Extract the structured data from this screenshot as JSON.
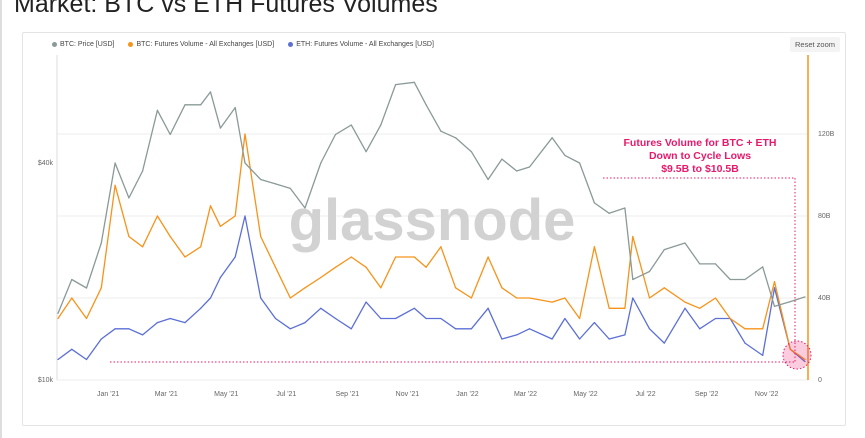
{
  "title": "Market: BTC vs ETH Futures Volumes",
  "reset_zoom": "Reset zoom",
  "watermark": "glassnode",
  "chart_data": {
    "type": "line",
    "title": "Market: BTC vs ETH Futures Volumes",
    "legend": [
      "BTC: Price [USD]",
      "BTC: Futures Volume - All Exchanges [USD]",
      "ETH: Futures Volume - All Exchanges [USD]"
    ],
    "legend_position": "top-left",
    "colors": {
      "btc_price": "#8a9a98",
      "btc_vol": "#f7931a",
      "eth_vol": "#5b6fd6",
      "annotation": "#e8196b"
    },
    "x_ticks": [
      "Jan '21",
      "Mar '21",
      "May '21",
      "Jul '21",
      "Sep '21",
      "Nov '21",
      "Jan '22",
      "Mar '22",
      "May '22",
      "Jul '22",
      "Sep '22",
      "Nov '22"
    ],
    "x_tick_dates": [
      "2021-01-01",
      "2021-03-01",
      "2021-05-01",
      "2021-07-01",
      "2021-09-01",
      "2021-11-01",
      "2022-01-01",
      "2022-03-01",
      "2022-05-01",
      "2022-07-01",
      "2022-09-01",
      "2022-11-01"
    ],
    "x_range": [
      "2020-11-10",
      "2022-12-13"
    ],
    "y_left": {
      "scale": "log",
      "range": [
        10000,
        80000
      ],
      "ticks": [
        {
          "v": 10000,
          "label": "$10k"
        },
        {
          "v": 40000,
          "label": "$40k"
        }
      ]
    },
    "y_right": {
      "scale": "linear",
      "range": [
        0,
        160
      ],
      "unit": "B",
      "ticks": [
        {
          "v": 0,
          "label": "0"
        },
        {
          "v": 40,
          "label": "40B"
        },
        {
          "v": 80,
          "label": "80B"
        },
        {
          "v": 120,
          "label": "120B"
        }
      ]
    },
    "x": [
      "2020-11-11",
      "2020-11-25",
      "2020-12-10",
      "2020-12-25",
      "2021-01-08",
      "2021-01-22",
      "2021-02-05",
      "2021-02-20",
      "2021-03-05",
      "2021-03-20",
      "2021-04-05",
      "2021-04-15",
      "2021-04-25",
      "2021-05-10",
      "2021-05-20",
      "2021-06-05",
      "2021-06-20",
      "2021-07-05",
      "2021-07-20",
      "2021-08-05",
      "2021-08-20",
      "2021-09-05",
      "2021-09-20",
      "2021-10-05",
      "2021-10-20",
      "2021-11-08",
      "2021-11-20",
      "2021-12-05",
      "2021-12-20",
      "2022-01-05",
      "2022-01-22",
      "2022-02-05",
      "2022-02-20",
      "2022-03-05",
      "2022-03-28",
      "2022-04-10",
      "2022-04-25",
      "2022-05-10",
      "2022-05-25",
      "2022-06-10",
      "2022-06-18",
      "2022-07-05",
      "2022-07-20",
      "2022-08-10",
      "2022-08-25",
      "2022-09-10",
      "2022-09-25",
      "2022-10-10",
      "2022-10-28",
      "2022-11-09",
      "2022-11-25",
      "2022-12-10"
    ],
    "series": [
      {
        "name": "BTC: Price [USD]",
        "axis": "left",
        "values": [
          15300,
          19000,
          18000,
          24000,
          40000,
          32000,
          38000,
          56000,
          48000,
          58000,
          58000,
          63000,
          50000,
          57000,
          40000,
          36000,
          35000,
          34000,
          30000,
          40000,
          48000,
          51000,
          43000,
          51000,
          66000,
          67000,
          58000,
          49000,
          47000,
          43000,
          36000,
          41000,
          38000,
          39000,
          47000,
          42000,
          40000,
          31000,
          29000,
          30000,
          19000,
          20000,
          23000,
          24000,
          21000,
          21000,
          19000,
          19000,
          20600,
          16000,
          16500,
          17000
        ]
      },
      {
        "name": "BTC: Futures Volume - All Exchanges [USD]",
        "axis": "right",
        "values": [
          30,
          40,
          30,
          45,
          95,
          70,
          65,
          80,
          70,
          60,
          65,
          85,
          75,
          80,
          120,
          70,
          55,
          40,
          45,
          50,
          55,
          60,
          55,
          45,
          60,
          60,
          55,
          65,
          45,
          40,
          60,
          45,
          40,
          40,
          38,
          40,
          30,
          65,
          35,
          35,
          70,
          40,
          45,
          38,
          35,
          40,
          30,
          25,
          25,
          48,
          15,
          10
        ]
      },
      {
        "name": "ETH: Futures Volume - All Exchanges [USD]",
        "axis": "right",
        "values": [
          10,
          15,
          10,
          20,
          25,
          25,
          22,
          28,
          30,
          28,
          35,
          40,
          50,
          60,
          80,
          40,
          30,
          25,
          28,
          35,
          30,
          25,
          38,
          30,
          30,
          35,
          30,
          30,
          25,
          25,
          35,
          20,
          22,
          25,
          20,
          30,
          20,
          28,
          20,
          22,
          40,
          25,
          18,
          35,
          25,
          30,
          30,
          18,
          12,
          45,
          15,
          9
        ]
      }
    ],
    "annotation": {
      "lines": [
        "Futures Volume for BTC + ETH",
        "Down to Cycle Lows",
        "$9.5B to $10.5B"
      ],
      "low_band": [
        9.5,
        10.5
      ]
    }
  }
}
